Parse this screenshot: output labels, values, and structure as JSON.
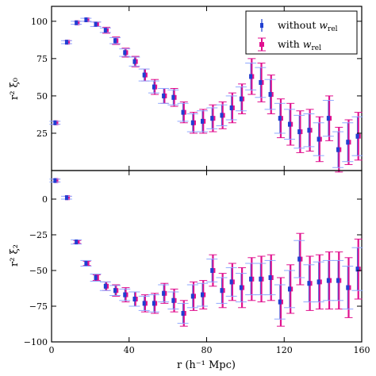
{
  "chart_data": [
    {
      "type": "scatter",
      "panel": "top",
      "ylabel": "r² ξ₀",
      "xlim": [
        0,
        160
      ],
      "ylim": [
        0,
        110
      ],
      "yticks": [
        25,
        50,
        75,
        100
      ],
      "legend_placement": "top-right",
      "series": [
        {
          "name": "without w_rel",
          "color": "#1f3fd1",
          "x": [
            2,
            8,
            13,
            18,
            23,
            28,
            33,
            38,
            43,
            48,
            53,
            58,
            63,
            68,
            73,
            78,
            83,
            88,
            93,
            98,
            103,
            108,
            113,
            118,
            123,
            128,
            133,
            138,
            143,
            148,
            153,
            158
          ],
          "y": [
            32,
            86,
            99,
            101,
            98,
            94,
            87,
            79,
            73,
            64,
            56,
            50,
            49,
            39,
            32,
            33,
            35,
            37,
            42,
            48,
            63,
            59,
            51,
            35,
            31,
            26,
            27,
            21,
            35,
            14,
            19,
            23
          ],
          "err": [
            1,
            1,
            1,
            1,
            1.5,
            1.5,
            2,
            2.5,
            3,
            4,
            4,
            5,
            5,
            6,
            6,
            7,
            7,
            7,
            8,
            8,
            9,
            10,
            10,
            10,
            10,
            11,
            11,
            11,
            12,
            12,
            13,
            13
          ]
        },
        {
          "name": "with w_rel",
          "color": "#e0118f",
          "x": [
            2,
            8,
            13,
            18,
            23,
            28,
            33,
            38,
            43,
            48,
            53,
            58,
            63,
            68,
            73,
            78,
            83,
            88,
            93,
            98,
            103,
            108,
            113,
            118,
            123,
            128,
            133,
            138,
            143,
            148,
            153,
            158
          ],
          "y": [
            32,
            86,
            99,
            101,
            98,
            94,
            87,
            79,
            73,
            64,
            56,
            50,
            49,
            39,
            32,
            33,
            35,
            37,
            42,
            48,
            63,
            59,
            51,
            35,
            31,
            26,
            27,
            21,
            35,
            14,
            19,
            23
          ],
          "err": [
            1,
            1,
            1,
            1,
            1.5,
            2,
            2.5,
            3,
            3.5,
            4,
            5,
            5,
            6,
            7,
            7,
            8,
            9,
            9,
            10,
            10,
            12,
            13,
            13,
            13,
            14,
            14,
            14,
            15,
            15,
            15,
            15,
            16
          ]
        }
      ]
    },
    {
      "type": "scatter",
      "panel": "bottom",
      "xlabel": "r (h⁻¹ Mpc)",
      "ylabel": "r² ξ₂",
      "xlim": [
        0,
        160
      ],
      "ylim": [
        -100,
        20
      ],
      "xticks": [
        0,
        40,
        80,
        120,
        160
      ],
      "yticks": [
        -100,
        -75,
        -50,
        -25,
        0
      ],
      "series": [
        {
          "name": "without w_rel",
          "color": "#1f3fd1",
          "x": [
            2,
            8,
            13,
            18,
            23,
            28,
            33,
            38,
            43,
            48,
            53,
            58,
            63,
            68,
            73,
            78,
            83,
            88,
            93,
            98,
            103,
            108,
            113,
            118,
            123,
            128,
            133,
            138,
            143,
            148,
            153,
            158
          ],
          "y": [
            13,
            1,
            -30,
            -45,
            -55,
            -61,
            -64,
            -67,
            -70,
            -73,
            -73,
            -66,
            -71,
            -80,
            -68,
            -67,
            -50,
            -64,
            -58,
            -62,
            -56,
            -56,
            -55,
            -72,
            -63,
            -42,
            -59,
            -58,
            -57,
            -57,
            -62,
            -49
          ],
          "err": [
            1,
            1,
            1.5,
            2,
            2.5,
            3,
            3.5,
            4,
            5,
            5,
            6,
            6,
            6,
            7,
            8,
            8,
            8,
            9,
            10,
            10,
            11,
            11,
            12,
            12,
            13,
            13,
            13,
            14,
            14,
            14,
            15,
            15
          ]
        },
        {
          "name": "with w_rel",
          "color": "#e0118f",
          "x": [
            2,
            8,
            13,
            18,
            23,
            28,
            33,
            38,
            43,
            48,
            53,
            58,
            63,
            68,
            73,
            78,
            83,
            88,
            93,
            98,
            103,
            108,
            113,
            118,
            123,
            128,
            133,
            138,
            143,
            148,
            153,
            158
          ],
          "y": [
            13,
            1,
            -30,
            -45,
            -55,
            -61,
            -64,
            -67,
            -70,
            -73,
            -73,
            -66,
            -71,
            -80,
            -68,
            -67,
            -50,
            -64,
            -58,
            -62,
            -56,
            -56,
            -55,
            -72,
            -63,
            -42,
            -59,
            -58,
            -57,
            -57,
            -62,
            -49
          ],
          "err": [
            1,
            1,
            1,
            1.5,
            2,
            3,
            4,
            5,
            5,
            6,
            7,
            7,
            8,
            9,
            10,
            10,
            11,
            12,
            13,
            14,
            15,
            16,
            16,
            17,
            17,
            18,
            19,
            19,
            20,
            20,
            21,
            21
          ]
        }
      ]
    }
  ]
}
